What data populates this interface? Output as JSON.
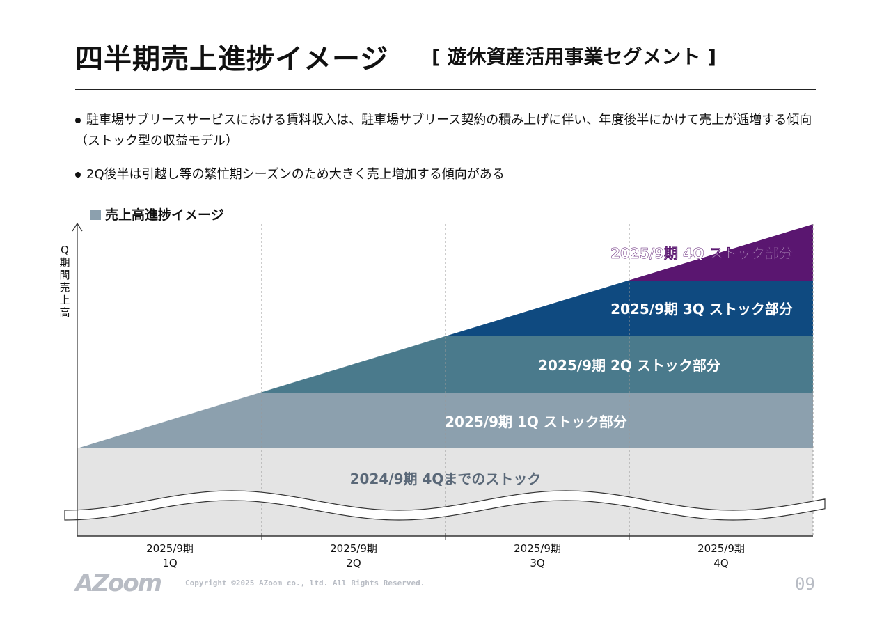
{
  "header": {
    "title": "四半期売上進捗イメージ",
    "subtitle": "[ 遊休資産活用事業セグメント ]"
  },
  "bullets": [
    "駐車場サブリースサービスにおける賃料収入は、駐車場サブリース契約の積み上げに伴い、年度後半にかけて売上が逓増する傾向（ストック型の収益モデル）",
    "2Q後半は引越し等の繁忙期シーズンのため大きく売上増加する傾向がある"
  ],
  "legend": "売上高進捗イメージ",
  "ylabel": "Q期間売上高",
  "bands": [
    {
      "label": "2024/9期 4Qまでのストック",
      "color": "#e4e4e4",
      "text_color": "#5a6878"
    },
    {
      "label": "2025/9期 1Q ストック部分",
      "color": "#8ca0ae",
      "text_color": "#ffffff"
    },
    {
      "label": "2025/9期 2Q ストック部分",
      "color": "#4a7a8c",
      "text_color": "#ffffff"
    },
    {
      "label": "2025/9期 3Q ストック部分",
      "color": "#0f4a80",
      "text_color": "#ffffff"
    },
    {
      "label": "2025/9期 4Q ストック部分",
      "color": "#5a1670",
      "text_color": "#ffffff"
    }
  ],
  "quarters": [
    {
      "period": "2025/9期",
      "q": "1Q"
    },
    {
      "period": "2025/9期",
      "q": "2Q"
    },
    {
      "period": "2025/9期",
      "q": "3Q"
    },
    {
      "period": "2025/9期",
      "q": "4Q"
    }
  ],
  "footer": {
    "logo": "AZoom",
    "copyright": "Copyright ©2025 AZoom co., ltd. All Rights Reserved.",
    "page": "09"
  }
}
